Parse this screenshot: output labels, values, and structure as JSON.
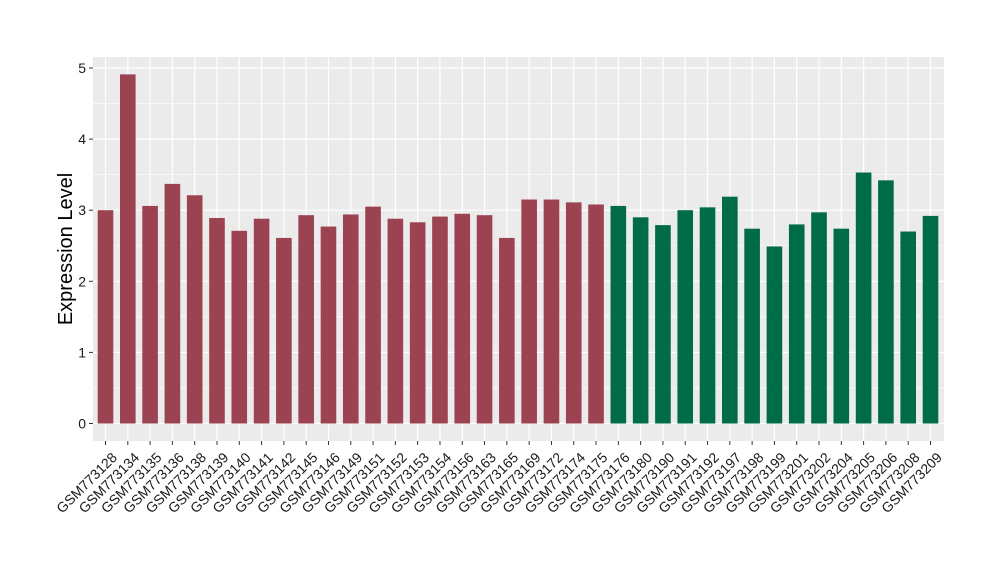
{
  "chart_data": {
    "type": "bar",
    "title": "",
    "xlabel": "",
    "ylabel": "Expression Level",
    "ylim": [
      0,
      5
    ],
    "yticks": [
      0,
      1,
      2,
      3,
      4,
      5
    ],
    "grid": true,
    "categories": [
      "GSM773128",
      "GSM773134",
      "GSM773135",
      "GSM773136",
      "GSM773138",
      "GSM773139",
      "GSM773140",
      "GSM773141",
      "GSM773142",
      "GSM773145",
      "GSM773146",
      "GSM773149",
      "GSM773151",
      "GSM773152",
      "GSM773153",
      "GSM773154",
      "GSM773156",
      "GSM773163",
      "GSM773165",
      "GSM773169",
      "GSM773172",
      "GSM773174",
      "GSM773175",
      "GSM773176",
      "GSM773180",
      "GSM773190",
      "GSM773191",
      "GSM773192",
      "GSM773197",
      "GSM773198",
      "GSM773199",
      "GSM773201",
      "GSM773202",
      "GSM773204",
      "GSM773205",
      "GSM773206",
      "GSM773208",
      "GSM773209"
    ],
    "values": [
      3.0,
      4.91,
      3.06,
      3.37,
      3.21,
      2.89,
      2.71,
      2.88,
      2.61,
      2.93,
      2.77,
      2.94,
      3.05,
      2.88,
      2.83,
      2.91,
      2.95,
      2.93,
      2.61,
      3.15,
      3.15,
      3.11,
      3.08,
      3.06,
      2.9,
      2.79,
      3.0,
      3.04,
      3.19,
      2.74,
      2.49,
      2.8,
      2.97,
      2.74,
      3.53,
      3.42,
      2.7,
      2.92
    ],
    "group_sizes": [
      23,
      15
    ],
    "colors": [
      "#9b4350",
      "#006b48"
    ],
    "panel_color": "#ebebeb",
    "grid_color": "#ffffff"
  }
}
